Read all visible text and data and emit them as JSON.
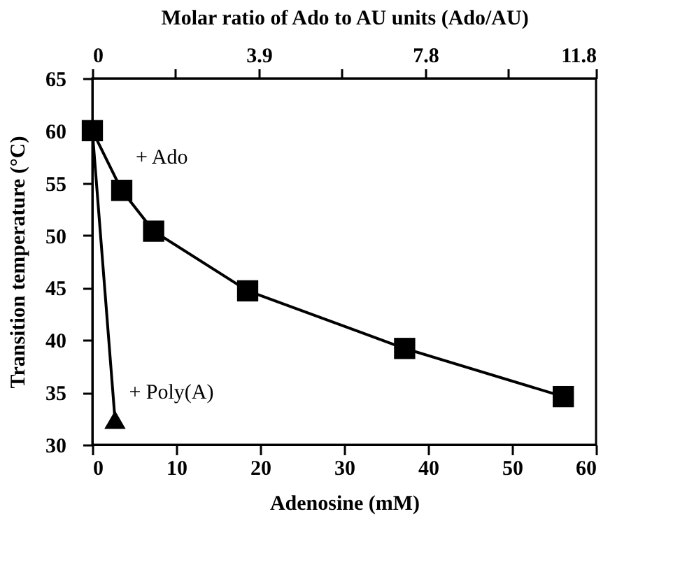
{
  "chart_data": {
    "type": "line",
    "xlabel": "Adenosine    (mM)",
    "ylabel": "Transition    temperature    (°C)",
    "x2label": "Molar ratio of Ado to AU units (Ado/AU)",
    "xlim": [
      0,
      60
    ],
    "xticks": [
      0,
      10,
      20,
      30,
      40,
      50,
      60
    ],
    "ylim": [
      30,
      65
    ],
    "yticks": [
      30,
      35,
      40,
      45,
      50,
      55,
      60,
      65
    ],
    "x2lim": [
      0,
      11.8
    ],
    "x2ticks": [
      0,
      {
        "value": 1.95,
        "label": null
      },
      3.9,
      {
        "value": 5.85,
        "label": null
      },
      7.8,
      {
        "value": 9.75,
        "label": null
      },
      11.8
    ],
    "grid": false,
    "line_style": "solid",
    "series": [
      {
        "name": "+ Ado",
        "color": "#000000",
        "marker": "square",
        "x": [
          0,
          3.5,
          7.3,
          18.5,
          37.2,
          56.1
        ],
        "values": [
          60,
          54.3,
          50.4,
          44.7,
          39.2,
          34.6
        ]
      },
      {
        "name": "+ Poly(A)",
        "color": "#000000",
        "marker": "triangle",
        "x": [
          0,
          2.7
        ],
        "values": [
          60,
          32.4
        ]
      }
    ]
  }
}
